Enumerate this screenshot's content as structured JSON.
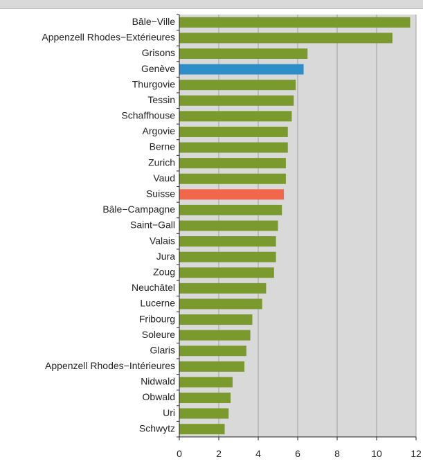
{
  "colors": {
    "bar_default": "#7a9a2e",
    "bar_geneve": "#2e8ec8",
    "bar_suisse": "#f0674a",
    "plot_background": "#d9d9d9",
    "grid": "#a0a0a0",
    "header": "#d9d9d9"
  },
  "chart_data": {
    "type": "bar",
    "orientation": "horizontal",
    "categories": [
      "Bâle−Ville",
      "Appenzell Rhodes−Extérieures",
      "Grisons",
      "Genève",
      "Thurgovie",
      "Tessin",
      "Schaffhouse",
      "Argovie",
      "Berne",
      "Zurich",
      "Vaud",
      "Suisse",
      "Bâle−Campagne",
      "Saint−Gall",
      "Valais",
      "Jura",
      "Zoug",
      "Neuchâtel",
      "Lucerne",
      "Fribourg",
      "Soleure",
      "Glaris",
      "Appenzell Rhodes−Intérieures",
      "Nidwald",
      "Obwald",
      "Uri",
      "Schwytz"
    ],
    "values": [
      11.7,
      10.8,
      6.5,
      6.3,
      5.9,
      5.8,
      5.7,
      5.5,
      5.5,
      5.4,
      5.4,
      5.3,
      5.2,
      5.0,
      4.9,
      4.9,
      4.8,
      4.4,
      4.2,
      3.7,
      3.6,
      3.4,
      3.3,
      2.7,
      2.6,
      2.5,
      2.3
    ],
    "highlights": {
      "Genève": "bar_geneve",
      "Suisse": "bar_suisse"
    },
    "xlim": [
      0,
      12
    ],
    "xticks": [
      "0",
      "2",
      "4",
      "6",
      "8",
      "10",
      "12"
    ],
    "title": "",
    "xlabel": "",
    "ylabel": "",
    "grid": true
  }
}
